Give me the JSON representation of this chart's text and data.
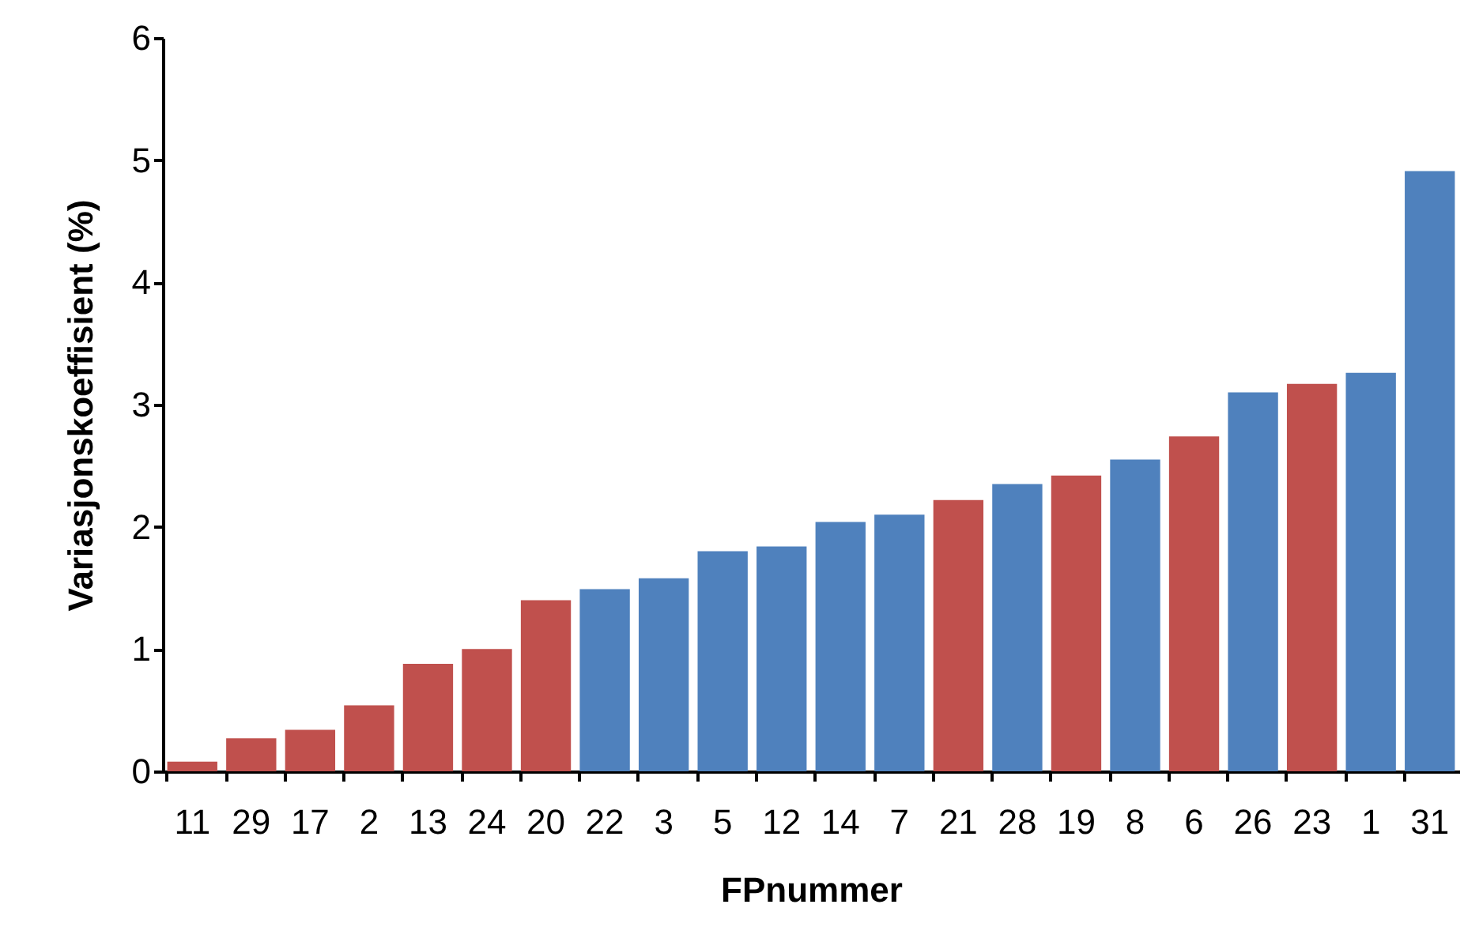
{
  "chart_data": {
    "type": "bar",
    "xlabel": "FPnummer",
    "ylabel": "Variasjonskoeffisient (%)",
    "categories": [
      "11",
      "29",
      "17",
      "2",
      "13",
      "24",
      "20",
      "22",
      "3",
      "5",
      "12",
      "14",
      "7",
      "21",
      "28",
      "19",
      "8",
      "6",
      "26",
      "23",
      "1",
      "31"
    ],
    "values": [
      0.08,
      0.27,
      0.34,
      0.54,
      0.88,
      1.0,
      1.4,
      1.49,
      1.58,
      1.8,
      1.84,
      2.04,
      2.1,
      2.22,
      2.35,
      2.42,
      2.55,
      2.74,
      3.1,
      3.17,
      3.26,
      4.91
    ],
    "colors": [
      "#c0504d",
      "#c0504d",
      "#c0504d",
      "#c0504d",
      "#c0504d",
      "#c0504d",
      "#c0504d",
      "#4f81bd",
      "#4f81bd",
      "#4f81bd",
      "#4f81bd",
      "#4f81bd",
      "#4f81bd",
      "#c0504d",
      "#4f81bd",
      "#c0504d",
      "#4f81bd",
      "#c0504d",
      "#4f81bd",
      "#c0504d",
      "#4f81bd",
      "#4f81bd"
    ],
    "ylim": [
      0,
      6
    ],
    "yticks": [
      0,
      1,
      2,
      3,
      4,
      5,
      6
    ],
    "grid": false
  }
}
